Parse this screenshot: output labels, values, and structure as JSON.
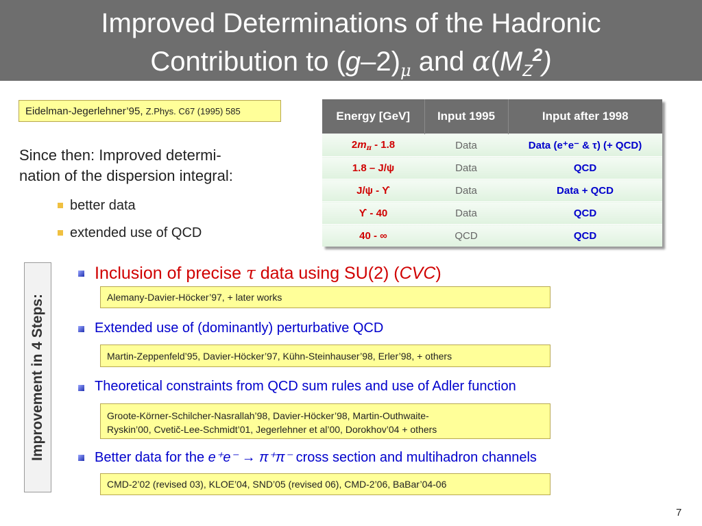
{
  "title": {
    "line1": "Improved Determinations of the Hadronic",
    "line2_a": "Contribution to (",
    "line2_g": "g",
    "line2_b": "–2)",
    "line2_mu": "μ",
    "line2_c": " and ",
    "line2_alpha": "α",
    "line2_d": "(",
    "line2_M": "M",
    "line2_Z": "Z",
    "line2_exp": "2",
    "line2_e": ")"
  },
  "reference_top": {
    "authors": "Eidelman-Jegerlehner’95, ",
    "journal": "Z.Phys. C67 (1995) 585"
  },
  "since": {
    "line1": "Since then: Improved determi-",
    "line2": "nation of the dispersion integral:"
  },
  "sub_bullets": [
    "better data",
    "extended use of QCD"
  ],
  "table": {
    "headers": [
      "Energy [GeV]",
      "Input 1995",
      "Input after 1998"
    ],
    "rows": [
      {
        "energy_pre": "2",
        "energy_m": "m",
        "energy_pi": "π",
        "energy_post": " - 1.8",
        "input_1995": "Data",
        "input_1998": "Data (e⁺e⁻ & τ)  (+ QCD)"
      },
      {
        "energy": "1.8 – J/ψ",
        "input_1995": "Data",
        "input_1998": "QCD"
      },
      {
        "energy": "J/ψ - ϒ",
        "input_1995": "Data",
        "input_1998": "Data + QCD"
      },
      {
        "energy": "ϒ - 40",
        "input_1995": "Data",
        "input_1998": "QCD"
      },
      {
        "energy": "40 - ∞",
        "input_1995": "QCD",
        "input_1998": "QCD"
      }
    ]
  },
  "steps_label": "Improvement in 4 Steps:",
  "steps": [
    {
      "text_a": "Inclusion of precise ",
      "text_tau": "τ",
      "text_b": " data using SU(2) (",
      "text_cvc": "CVC",
      "text_c": ")",
      "reference": "Alemany-Davier-Höcker’97, + later works"
    },
    {
      "text": "Extended use of (dominantly) perturbative QCD",
      "reference": "Martin-Zeppenfeld’95, Davier-Höcker’97, Kühn-Steinhauser’98, Erler’98, + others"
    },
    {
      "text": "Theoretical constraints from QCD sum rules and use of Adler function",
      "reference_line1": "Groote-Körner-Schilcher-Nasrallah’98, Davier-Höcker’98, Martin-Outhwaite-",
      "reference_line2": "Ryskin’00, Cvetič-Lee-Schmidt’01, Jegerlehner et al’00, Dorokhov’04 + others"
    },
    {
      "text_a": "Better data for the ",
      "text_reaction": "e⁺e⁻ → π⁺π⁻",
      "text_b": " cross section and multihadron channels",
      "reference": "CMD-2’02 (revised 03), KLOE’04, SND’05 (revised 06), CMD-2’06, BaBar’04-06"
    }
  ],
  "page_number": "7",
  "colors": {
    "title_bar": "#6e6e6e",
    "reference_box": "#ffff99",
    "emphasis_red": "#d00000",
    "emphasis_blue": "#0000cc",
    "bullet_yellow": "#f0c040"
  }
}
